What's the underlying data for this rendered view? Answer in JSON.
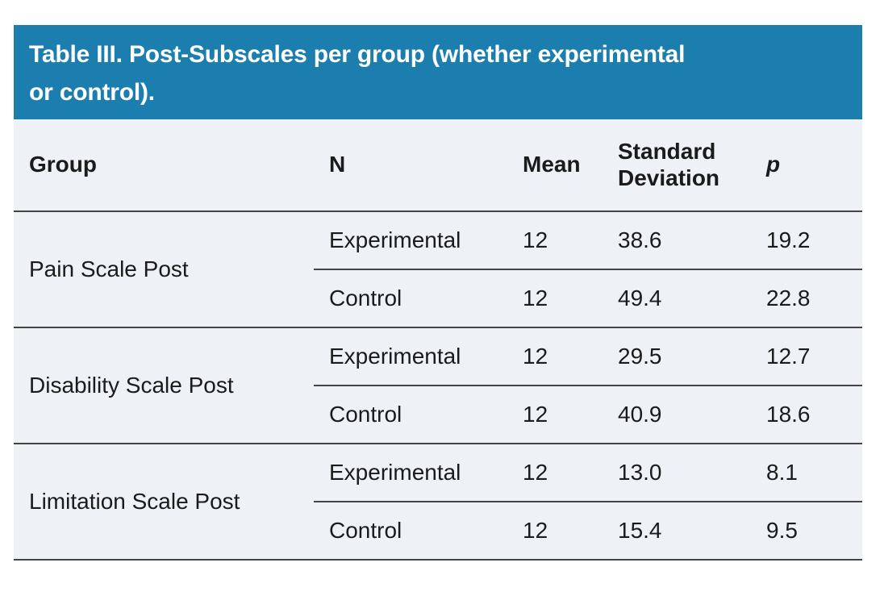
{
  "title_lines": [
    "Table III. Post-Subscales per group (whether experimental",
    "or control)."
  ],
  "colors": {
    "header_bg": "#1b7eae",
    "body_bg": "#eef1f6",
    "rule": "#444444",
    "text": "#1b1b1b",
    "title_text": "#ffffff"
  },
  "table": {
    "columns": [
      "Group",
      "N",
      "Mean",
      "Standard Deviation",
      "p"
    ],
    "groups": [
      {
        "label": "Pain Scale Post",
        "rows": [
          {
            "cells": [
              "Experimental",
              "12",
              "38.6",
              "19.2"
            ]
          },
          {
            "cells": [
              "Control",
              "12",
              "49.4",
              "22.8"
            ]
          }
        ]
      },
      {
        "label": "Disability Scale Post",
        "rows": [
          {
            "cells": [
              "Experimental",
              "12",
              "29.5",
              "12.7"
            ]
          },
          {
            "cells": [
              "Control",
              "12",
              "40.9",
              "18.6"
            ]
          }
        ]
      },
      {
        "label": "Limitation Scale Post",
        "rows": [
          {
            "cells": [
              "Experimental",
              "12",
              "13.0",
              "8.1"
            ]
          },
          {
            "cells": [
              "Control",
              "12",
              "15.4",
              "9.5"
            ]
          }
        ]
      }
    ]
  }
}
